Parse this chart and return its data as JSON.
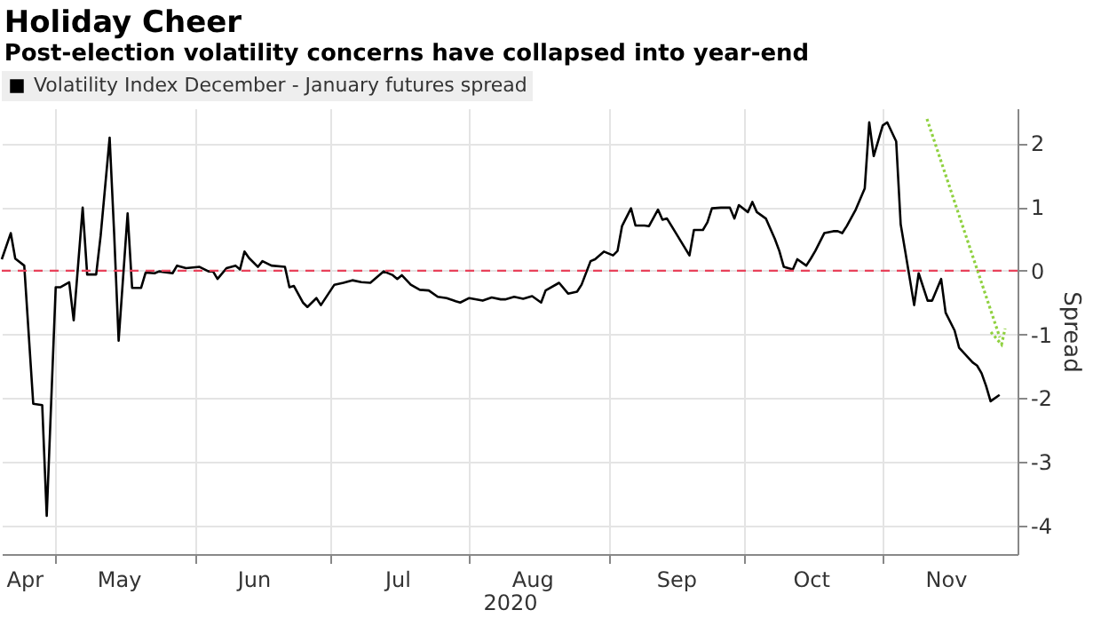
{
  "chart_data": {
    "type": "line",
    "title": "Holiday Cheer",
    "subtitle": "Post-election volatility concerns have collapsed into year-end",
    "xlabel": "2020",
    "ylabel": "Spread",
    "x": [
      "2020-04-19",
      "2020-04-21",
      "2020-04-22",
      "2020-04-24",
      "2020-04-26",
      "2020-04-28",
      "2020-04-29",
      "2020-05-01",
      "2020-05-02",
      "2020-05-04",
      "2020-05-05",
      "2020-05-07",
      "2020-05-08",
      "2020-05-10",
      "2020-05-11",
      "2020-05-13",
      "2020-05-14",
      "2020-05-15",
      "2020-05-17",
      "2020-05-18",
      "2020-05-20",
      "2020-05-21",
      "2020-05-23",
      "2020-05-24",
      "2020-05-27",
      "2020-05-28",
      "2020-05-30",
      "2020-06-02",
      "2020-06-04",
      "2020-06-05",
      "2020-06-06",
      "2020-06-08",
      "2020-06-10",
      "2020-06-11",
      "2020-06-12",
      "2020-06-13",
      "2020-06-15",
      "2020-06-16",
      "2020-06-18",
      "2020-06-21",
      "2020-06-22",
      "2020-06-23",
      "2020-06-25",
      "2020-06-26",
      "2020-06-28",
      "2020-06-29",
      "2020-07-02",
      "2020-07-04",
      "2020-07-06",
      "2020-07-08",
      "2020-07-10",
      "2020-07-13",
      "2020-07-15",
      "2020-07-16",
      "2020-07-17",
      "2020-07-19",
      "2020-07-21",
      "2020-07-23",
      "2020-07-25",
      "2020-07-27",
      "2020-07-29",
      "2020-07-30",
      "2020-08-01",
      "2020-08-04",
      "2020-08-06",
      "2020-08-08",
      "2020-08-09",
      "2020-08-11",
      "2020-08-13",
      "2020-08-15",
      "2020-08-17",
      "2020-08-18",
      "2020-08-21",
      "2020-08-23",
      "2020-08-25",
      "2020-08-26",
      "2020-08-28",
      "2020-08-29",
      "2020-08-31",
      "2020-09-02",
      "2020-09-03",
      "2020-09-04",
      "2020-09-06",
      "2020-09-07",
      "2020-09-09",
      "2020-09-10",
      "2020-09-12",
      "2020-09-13",
      "2020-09-14",
      "2020-09-16",
      "2020-09-19",
      "2020-09-20",
      "2020-09-22",
      "2020-09-23",
      "2020-09-24",
      "2020-09-26",
      "2020-09-28",
      "2020-09-29",
      "2020-09-30",
      "2020-10-02",
      "2020-10-03",
      "2020-10-04",
      "2020-10-06",
      "2020-10-08",
      "2020-10-09",
      "2020-10-10",
      "2020-10-12",
      "2020-10-13",
      "2020-10-15",
      "2020-10-16",
      "2020-10-17",
      "2020-10-19",
      "2020-10-21",
      "2020-10-22",
      "2020-10-23",
      "2020-10-24",
      "2020-10-26",
      "2020-10-28",
      "2020-10-29",
      "2020-10-30",
      "2020-11-01",
      "2020-11-02",
      "2020-11-04",
      "2020-11-05",
      "2020-11-06",
      "2020-11-08",
      "2020-11-09",
      "2020-11-11",
      "2020-11-12",
      "2020-11-14",
      "2020-11-15",
      "2020-11-17",
      "2020-11-18",
      "2020-11-21",
      "2020-11-22",
      "2020-11-23",
      "2020-11-24",
      "2020-11-25",
      "2020-11-27"
    ],
    "series": [
      {
        "name": "Volatility Index December - January futures spread",
        "color": "#000000",
        "values": [
          0.18,
          0.59,
          0.19,
          0.08,
          -2.09,
          -2.11,
          -3.85,
          -0.26,
          -0.26,
          -0.18,
          -0.78,
          0.99,
          -0.06,
          -0.06,
          0.55,
          2.09,
          0.59,
          -1.1,
          0.9,
          -0.27,
          -0.27,
          -0.03,
          -0.04,
          -0.01,
          -0.04,
          0.08,
          0.04,
          0.06,
          -0.01,
          -0.01,
          -0.13,
          0.04,
          0.08,
          0.02,
          0.3,
          0.2,
          0.06,
          0.15,
          0.08,
          0.06,
          -0.26,
          -0.24,
          -0.5,
          -0.57,
          -0.43,
          -0.54,
          -0.22,
          -0.19,
          -0.15,
          -0.18,
          -0.19,
          -0.01,
          -0.07,
          -0.13,
          -0.07,
          -0.22,
          -0.3,
          -0.31,
          -0.41,
          -0.43,
          -0.48,
          -0.5,
          -0.43,
          -0.47,
          -0.42,
          -0.45,
          -0.45,
          -0.41,
          -0.44,
          -0.4,
          -0.5,
          -0.31,
          -0.19,
          -0.36,
          -0.33,
          -0.22,
          0.15,
          0.18,
          0.3,
          0.24,
          0.31,
          0.7,
          0.98,
          0.71,
          0.71,
          0.7,
          0.96,
          0.8,
          0.82,
          0.59,
          0.24,
          0.64,
          0.64,
          0.76,
          0.98,
          0.99,
          0.99,
          0.82,
          1.03,
          0.92,
          1.08,
          0.92,
          0.82,
          0.5,
          0.31,
          0.06,
          0.02,
          0.18,
          0.08,
          0.19,
          0.31,
          0.59,
          0.62,
          0.62,
          0.59,
          0.7,
          0.96,
          1.29,
          2.33,
          1.8,
          2.28,
          2.33,
          2.03,
          0.73,
          0.31,
          -0.54,
          -0.04,
          -0.47,
          -0.47,
          -0.13,
          -0.66,
          -0.94,
          -1.21,
          -1.44,
          -1.49,
          -1.61,
          -1.81,
          -2.05,
          -1.95
        ]
      }
    ],
    "xlim": [
      "2020-04-19",
      "2020-12-01"
    ],
    "xticks": [
      {
        "value": "2020-04-24",
        "label": "Apr"
      },
      {
        "value": "2020-05-01",
        "label": null
      },
      {
        "value": "2020-05-15",
        "label": "May"
      },
      {
        "value": "2020-06-01",
        "label": null
      },
      {
        "value": "2020-06-14",
        "label": "Jun"
      },
      {
        "value": "2020-07-01",
        "label": null
      },
      {
        "value": "2020-07-16",
        "label": "Jul"
      },
      {
        "value": "2020-08-01",
        "label": null
      },
      {
        "value": "2020-08-15",
        "label": "Aug"
      },
      {
        "value": "2020-09-01",
        "label": null
      },
      {
        "value": "2020-09-16",
        "label": "Sep"
      },
      {
        "value": "2020-10-01",
        "label": null
      },
      {
        "value": "2020-10-16",
        "label": "Oct"
      },
      {
        "value": "2020-11-01",
        "label": null
      },
      {
        "value": "2020-11-15",
        "label": "Nov"
      }
    ],
    "ylim": [
      -4.45,
      2.55
    ],
    "yticks": [
      -4,
      -3,
      -2,
      -1,
      0,
      1,
      2
    ],
    "ref_lines": [
      {
        "axis": "y",
        "value": 0,
        "color": "#e8415a",
        "line_style": "dashed"
      }
    ],
    "grid": true,
    "legend": "top left"
  }
}
